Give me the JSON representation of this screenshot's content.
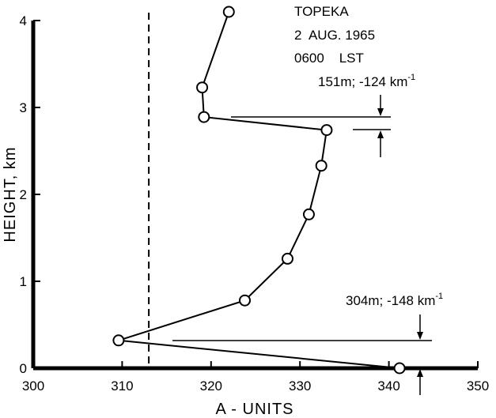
{
  "chart_data": {
    "type": "line",
    "title_lines": [
      "TOPEKA",
      "2  AUG. 1965",
      "0600    LST"
    ],
    "xlabel": "A - UNITS",
    "ylabel": "HEIGHT, km",
    "xlim": [
      300,
      350
    ],
    "ylim": [
      0,
      4
    ],
    "x_ticks": [
      "300",
      "310",
      "320",
      "330",
      "340",
      "350"
    ],
    "y_ticks": [
      "0",
      "1",
      "2",
      "3",
      "4"
    ],
    "series": [
      {
        "points": [
          {
            "x": 341.2,
            "y": 0.0
          },
          {
            "x": 309.6,
            "y": 0.32
          },
          {
            "x": 323.8,
            "y": 0.78
          },
          {
            "x": 328.6,
            "y": 1.26
          },
          {
            "x": 331.0,
            "y": 1.77
          },
          {
            "x": 332.4,
            "y": 2.33
          },
          {
            "x": 333.0,
            "y": 2.74
          },
          {
            "x": 319.2,
            "y": 2.89
          },
          {
            "x": 319.0,
            "y": 3.23
          },
          {
            "x": 322.0,
            "y": 4.1
          }
        ]
      }
    ],
    "reference_line": {
      "x": 313,
      "style": "dashed"
    },
    "annotations": [
      {
        "text": "151m; -124 km",
        "superscript": "-1"
      },
      {
        "text": "304m; -148 km",
        "superscript": "-1"
      }
    ]
  }
}
